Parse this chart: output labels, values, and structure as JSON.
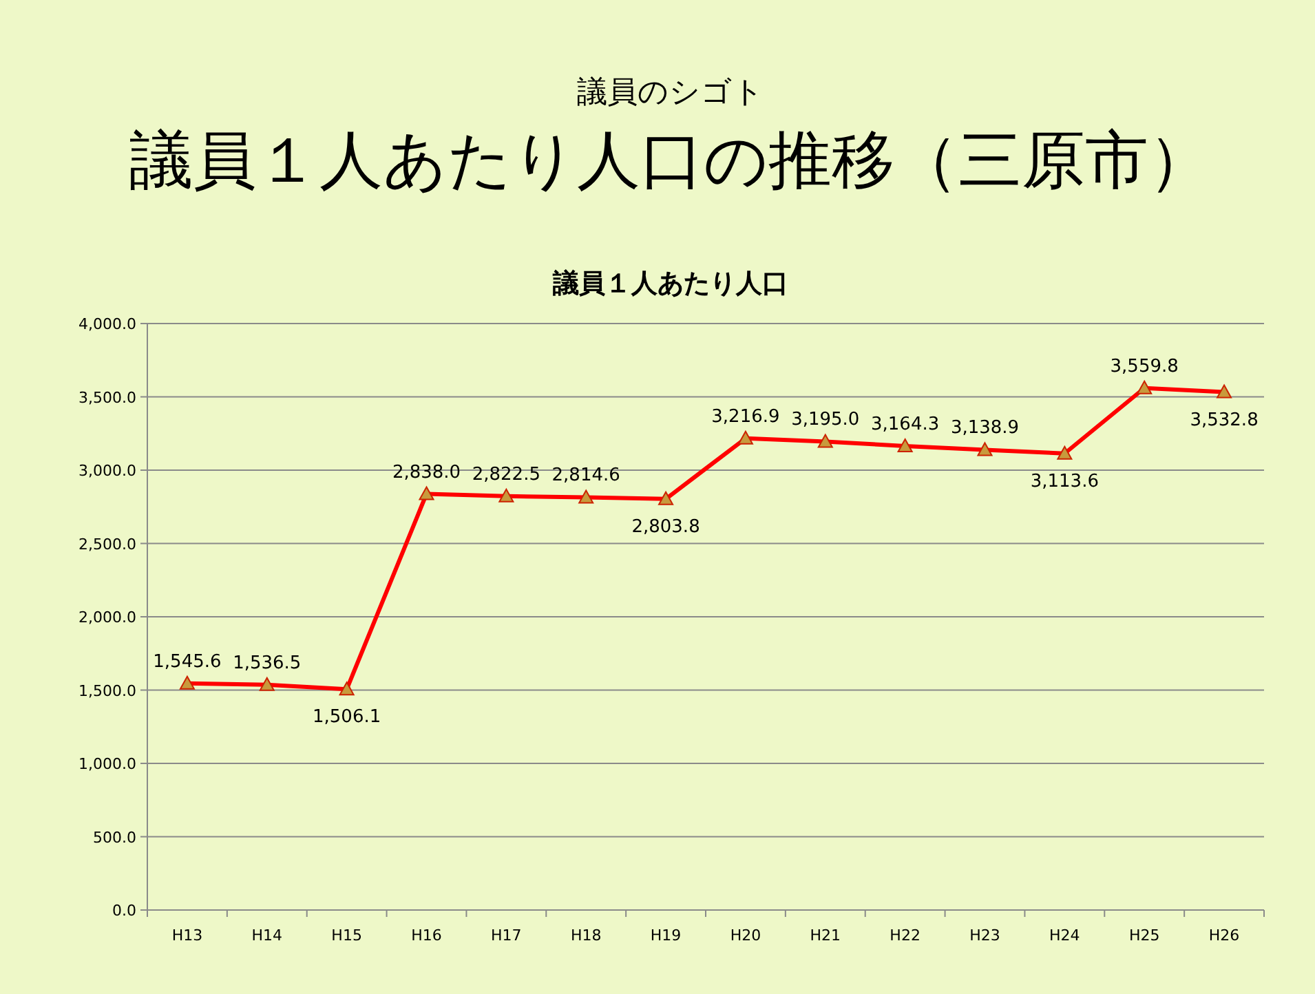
{
  "chart_data": {
    "type": "line",
    "subtitle": "議員のシゴト",
    "title": "議員１人あたり人口の推移（三原市）",
    "annotations": [
      "議員１人あたり人口"
    ],
    "categories": [
      "H13",
      "H14",
      "H15",
      "H16",
      "H17",
      "H18",
      "H19",
      "H20",
      "H21",
      "H22",
      "H23",
      "H24",
      "H25",
      "H26"
    ],
    "series": [
      {
        "color": "#ff0000",
        "values": [
          1545.6,
          1536.5,
          1506.1,
          2838.0,
          2822.5,
          2814.6,
          2803.8,
          3216.9,
          3195.0,
          3164.3,
          3138.9,
          3113.6,
          3559.8,
          3532.8
        ],
        "value_labels": [
          "1,545.6",
          "1,536.5",
          "1,506.1",
          "2,838.0",
          "2,822.5",
          "2,814.6",
          "2,803.8",
          "3,216.9",
          "3,195.0",
          "3,164.3",
          "3,138.9",
          "3,113.6",
          "3,559.8",
          "3,532.8"
        ]
      }
    ],
    "ylim": [
      0,
      4000
    ],
    "yticks": [
      {
        "value": 0,
        "label": "0.0"
      },
      {
        "value": 500,
        "label": "500.0"
      },
      {
        "value": 1000,
        "label": "1,000.0"
      },
      {
        "value": 1500,
        "label": "1,500.0"
      },
      {
        "value": 2000,
        "label": "2,000.0"
      },
      {
        "value": 2500,
        "label": "2,500.0"
      },
      {
        "value": 3000,
        "label": "3,000.0"
      },
      {
        "value": 3500,
        "label": "3,500.0"
      },
      {
        "value": 4000,
        "label": "4,000.0"
      }
    ],
    "grid": "y",
    "marker": "triangle"
  }
}
